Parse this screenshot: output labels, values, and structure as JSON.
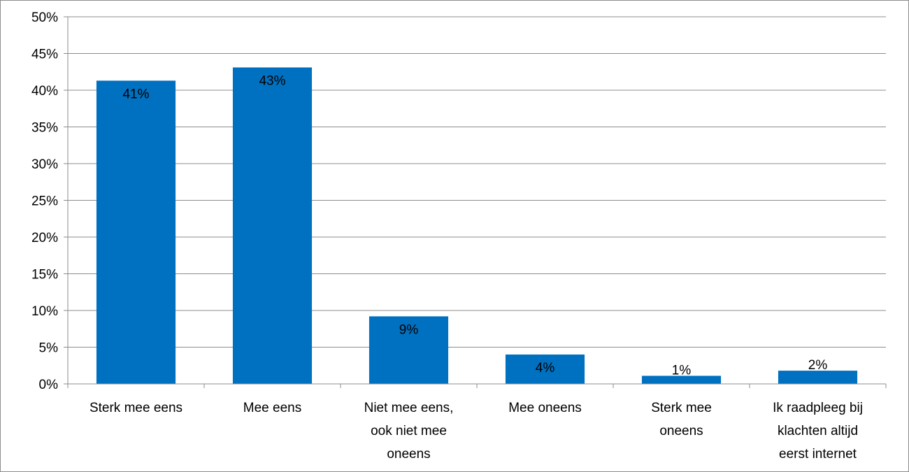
{
  "chart_data": {
    "type": "bar",
    "categories": [
      [
        "Sterk mee eens"
      ],
      [
        "Mee eens"
      ],
      [
        "Niet mee eens,",
        "ook niet mee",
        "oneens"
      ],
      [
        "Mee oneens"
      ],
      [
        "Sterk mee",
        "oneens"
      ],
      [
        "Ik raadpleeg bij",
        "klachten altijd",
        "eerst internet"
      ]
    ],
    "values": [
      41.3,
      43.1,
      9.2,
      4.0,
      1.1,
      1.8
    ],
    "data_labels": [
      "41%",
      "43%",
      "9%",
      "4%",
      "1%",
      "2%"
    ],
    "y_ticks": [
      "0%",
      "5%",
      "10%",
      "15%",
      "20%",
      "25%",
      "30%",
      "35%",
      "40%",
      "45%",
      "50%"
    ],
    "ylim": [
      0,
      50
    ],
    "grid": true,
    "legend": "none",
    "title": "",
    "xlabel": "",
    "ylabel": ""
  },
  "colors": {
    "bar": "#0070c0",
    "grid": "#8c8c8c",
    "axis": "#8c8c8c"
  }
}
